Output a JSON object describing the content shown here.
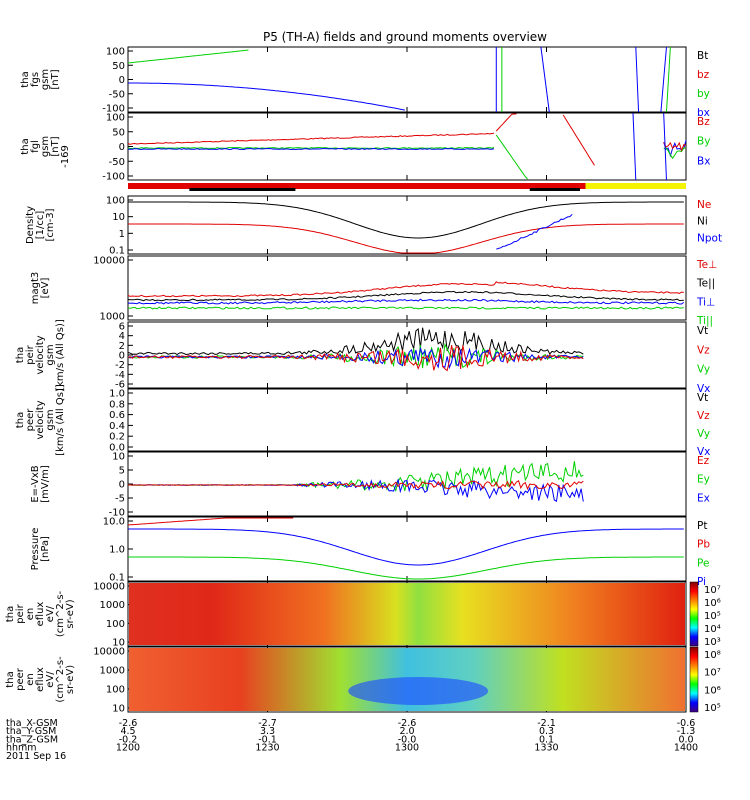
{
  "title": "P5 (TH-A) fields and ground moments overview",
  "colors": {
    "black": "#000000",
    "red": "#e00000",
    "green": "#00d000",
    "blue": "#0000ff",
    "yellow": "#f4f400"
  },
  "panels": [
    {
      "id": "fgs",
      "ylabel": [
        "tha",
        "fgs",
        "gsm",
        "[nT]"
      ],
      "ticks": [
        "100",
        "50",
        "0",
        "-50",
        "-100"
      ],
      "legend": [
        [
          "Bt",
          "black"
        ],
        [
          "bz",
          "red"
        ],
        [
          "by",
          "green"
        ],
        [
          "bx",
          "blue"
        ]
      ]
    },
    {
      "id": "fgl",
      "ylabel": [
        "tha",
        "fgl",
        "gsm",
        "[nT]"
      ],
      "ticks": [
        "100",
        "50",
        "0",
        "-50",
        "-100"
      ],
      "extra_label": "-169",
      "legend": [
        [
          "Bz",
          "red"
        ],
        [
          "By",
          "green"
        ],
        [
          "Bx",
          "blue"
        ]
      ]
    },
    {
      "id": "density",
      "ylabel": [
        "Density",
        "[1/cc]",
        "[cm-3]"
      ],
      "ticks": [
        "100",
        "10",
        "1",
        "0.1"
      ],
      "legend": [
        [
          "Ne",
          "red"
        ],
        [
          "Ni",
          "black"
        ],
        [
          "Npot",
          "blue"
        ]
      ]
    },
    {
      "id": "temp",
      "ylabel": [
        "magt3",
        "[eV]"
      ],
      "ticks": [
        "10000",
        "1000"
      ],
      "legend": [
        [
          "Te⊥",
          "red"
        ],
        [
          "Te||",
          "black"
        ],
        [
          "Ti⊥",
          "blue"
        ],
        [
          "Ti||",
          "green"
        ]
      ]
    },
    {
      "id": "peir",
      "ylabel": [
        "tha",
        "peir",
        "velocity",
        "gsm",
        "[km/s (All Qs)]"
      ],
      "ticks": [
        "6",
        "4",
        "2",
        "0",
        "-2",
        "-4",
        "-6"
      ],
      "legend": [
        [
          "Vt",
          "black"
        ],
        [
          "Vz",
          "red"
        ],
        [
          "Vy",
          "green"
        ],
        [
          "Vx",
          "blue"
        ]
      ]
    },
    {
      "id": "peer",
      "ylabel": [
        "tha",
        "peer",
        "velocity",
        "gsm",
        "[km/s (All Qs)]"
      ],
      "ticks": [
        "1.0",
        "0.8",
        "0.6",
        "0.4",
        "0.2",
        "0.0"
      ],
      "legend": [
        [
          "Vt",
          "black"
        ],
        [
          "Vz",
          "red"
        ],
        [
          "Vy",
          "green"
        ],
        [
          "Vx",
          "blue"
        ]
      ]
    },
    {
      "id": "efield",
      "ylabel": [
        "E=-VxB",
        "[mV/m]"
      ],
      "ticks": [
        "10",
        "5",
        "0",
        "-5",
        "-10"
      ],
      "legend": [
        [
          "Ez",
          "red"
        ],
        [
          "Ey",
          "green"
        ],
        [
          "Ex",
          "blue"
        ]
      ]
    },
    {
      "id": "pressure",
      "ylabel": [
        "Pressure",
        "[nPa]"
      ],
      "ticks": [
        "10.0",
        "1.0",
        "0.1"
      ],
      "legend": [
        [
          "Pt",
          "black"
        ],
        [
          "Pb",
          "red"
        ],
        [
          "Pe",
          "green"
        ],
        [
          "Pi",
          "blue"
        ]
      ]
    },
    {
      "id": "peir_spec",
      "ylabel": [
        "tha",
        "peir",
        "en",
        "eflux",
        "eV/",
        "(cm^2-s-",
        "sr-eV)"
      ],
      "ticks": [
        "10000",
        "1000",
        "100",
        "10"
      ],
      "colorbar": [
        "10⁷",
        "10⁶",
        "10⁵",
        "10⁴",
        "10³"
      ]
    },
    {
      "id": "peer_spec",
      "ylabel": [
        "tha",
        "peer",
        "en",
        "eflux",
        "eV/",
        "(cm^2-s-",
        "sr-eV)"
      ],
      "ticks": [
        "10000",
        "1000",
        "100",
        "10"
      ],
      "colorbar": [
        "10⁸",
        "10⁷",
        "10⁶",
        "10⁵"
      ]
    }
  ],
  "footer": {
    "row_labels": [
      "tha_X-GSM",
      "tha_Y-GSM",
      "tha_Z-GSM",
      "hhmm",
      "2011 Sep 16"
    ],
    "columns": [
      [
        "-2.6",
        "4.5",
        "-0.2",
        "1200"
      ],
      [
        "-2.7",
        "3.3",
        "-0.1",
        "1230"
      ],
      [
        "-2.6",
        "2.0",
        "-0.0",
        "1300"
      ],
      [
        "-2.1",
        "0.3",
        "0.1",
        "1330"
      ],
      [
        "-0.6",
        "-1.3",
        "0.0",
        "1400"
      ]
    ]
  },
  "chart_data": {
    "type": "line",
    "title": "P5 (TH-A) fields and ground moments overview",
    "x_axis": {
      "label": "hhmm",
      "ticks": [
        "1200",
        "1230",
        "1300",
        "1330",
        "1400"
      ]
    },
    "series_notes": [
      {
        "panel": "fgs",
        "series": [
          "Bt",
          "bz",
          "by",
          "bx"
        ]
      },
      {
        "panel": "fgl",
        "series": [
          "Bz",
          "By",
          "Bx"
        ]
      },
      {
        "panel": "density",
        "scale": "log",
        "series": [
          "Ne",
          "Ni",
          "Npot"
        ]
      },
      {
        "panel": "temp",
        "scale": "log",
        "series": [
          "Te⊥",
          "Te||",
          "Ti⊥",
          "Ti||"
        ]
      },
      {
        "panel": "peir",
        "series": [
          "Vt",
          "Vz",
          "Vy",
          "Vx"
        ]
      },
      {
        "panel": "efield",
        "series": [
          "Ez",
          "Ey",
          "Ex"
        ]
      },
      {
        "panel": "pressure",
        "scale": "log",
        "series": [
          "Pt",
          "Pb",
          "Pe",
          "Pi"
        ]
      }
    ],
    "grid": false,
    "legend": "right"
  }
}
